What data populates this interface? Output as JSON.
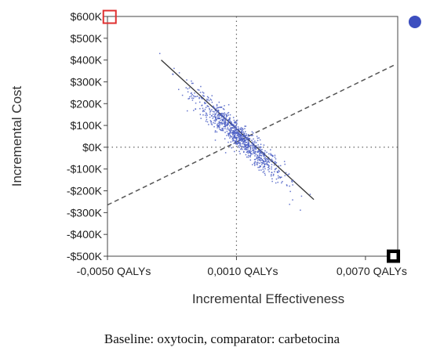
{
  "chart_data": {
    "type": "scatter",
    "xlabel": "Incremental Effectiveness",
    "ylabel": "Incremental Cost",
    "xlim": [
      -0.005,
      0.0085
    ],
    "ylim": [
      -500000,
      600000
    ],
    "x_ticks": [
      {
        "value": -0.005,
        "label": "-0,0050 QALYs"
      },
      {
        "value": 0.001,
        "label": "0,0010 QALYs"
      },
      {
        "value": 0.007,
        "label": "0,0070 QALYs"
      }
    ],
    "y_ticks": [
      {
        "value": 600000,
        "label": "$600K"
      },
      {
        "value": 500000,
        "label": "$500K"
      },
      {
        "value": 400000,
        "label": "$400K"
      },
      {
        "value": 300000,
        "label": "$300K"
      },
      {
        "value": 200000,
        "label": "$200K"
      },
      {
        "value": 100000,
        "label": "$100K"
      },
      {
        "value": 0,
        "label": "$0K"
      },
      {
        "value": -100000,
        "label": "-$100K"
      },
      {
        "value": -200000,
        "label": "-$200K"
      },
      {
        "value": -300000,
        "label": "-$300K"
      },
      {
        "value": -400000,
        "label": "-$400K"
      },
      {
        "value": -500000,
        "label": "-$500K"
      }
    ],
    "origin": {
      "x": 0.001,
      "y": 0
    },
    "grid": false,
    "point_color": "#4a5ec4",
    "regression_line": {
      "x": [
        -0.0025,
        0.0046
      ],
      "y": [
        400000,
        -240000
      ]
    },
    "wtp_line": {
      "x": [
        -0.005,
        0.0084
      ],
      "y": [
        -265000,
        380000
      ]
    },
    "point_cloud": {
      "count": 900,
      "center_x": 0.0011,
      "center_y": 50000,
      "slope": -90000000,
      "spread_x": 0.0017,
      "spread_residual": 30000
    },
    "markers": [
      {
        "name": "red-square-marker",
        "x": -0.0049,
        "y": 598000,
        "shape": "open-square",
        "color": "#e03030"
      },
      {
        "name": "black-square-marker",
        "x": 0.0083,
        "y": -500000,
        "shape": "filled-square",
        "color": "#000000"
      },
      {
        "name": "blue-circle-marker",
        "x": 0.0093,
        "y": 575000,
        "shape": "circle",
        "color": "#3d4fbf"
      }
    ],
    "caption": "Baseline: oxytocin, comparator: carbetocina"
  }
}
